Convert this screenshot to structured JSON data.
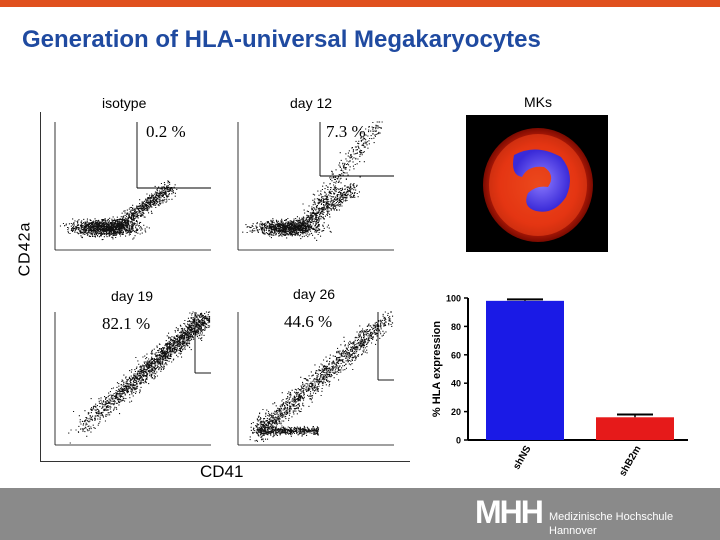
{
  "slide": {
    "title": "Generation of HLA-universal Megakaryocytes",
    "accent_color": "#e0501e",
    "title_color": "#1f4aa0",
    "footer_color": "#8a8a8a"
  },
  "flow_panels": [
    {
      "label": "isotype",
      "percent": "0.2 %"
    },
    {
      "label": "day 12",
      "percent": "7.3 %"
    },
    {
      "label": "day 19",
      "percent": "82.1 %"
    },
    {
      "label": "day 26",
      "percent": "44.6 %"
    }
  ],
  "axes": {
    "y": "CD42a",
    "x": "CD41"
  },
  "mks": {
    "label": "MKs",
    "icon": "megakaryocyte-fluorescence-image"
  },
  "chart_data": {
    "type": "bar",
    "categories": [
      "shNS",
      "shB2m"
    ],
    "values": [
      98,
      16
    ],
    "errors": [
      1,
      2
    ],
    "colors": [
      "#1a1ae6",
      "#e61a1a"
    ],
    "ylabel": "% HLA expression",
    "ylim": [
      0,
      100
    ],
    "yticks": [
      "0",
      "20",
      "40",
      "60",
      "80",
      "100"
    ]
  },
  "footer": {
    "logo": "MHH",
    "institution_line1": "Medizinische Hochschule",
    "institution_line2": "Hannover"
  }
}
